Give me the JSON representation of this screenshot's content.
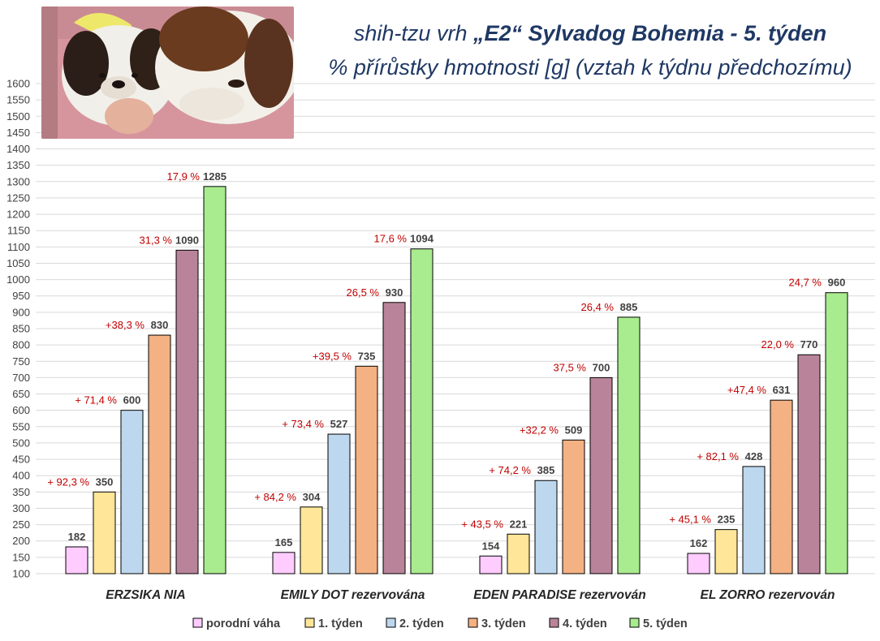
{
  "title": {
    "line1_plain": "shih-tzu vrh ",
    "line1_bold": "„E2“ Sylvadog Bohemia - 5. týden",
    "line2": "% přírůstky hmotnosti [g] (vztah k týdnu předchozímu)"
  },
  "photo": {
    "icon": "puppies-photo"
  },
  "chart_data": {
    "type": "bar",
    "title": "shih-tzu vrh „E2“ Sylvadog Bohemia - 5. týden",
    "subtitle": "% přírůstky hmotnosti [g] (vztah k týdnu předchozímu)",
    "xlabel": "",
    "ylabel": "",
    "ylim": [
      100,
      1600
    ],
    "ytick_step": 50,
    "grid": true,
    "legend_position": "bottom",
    "categories": [
      "ERZSIKA NIA",
      "EMILY DOT rezervována",
      "EDEN PARADISE rezervován",
      "EL ZORRO  rezervován"
    ],
    "series": [
      {
        "name": "porodní váha",
        "color": "#ffccff",
        "values": [
          182,
          165,
          154,
          162
        ],
        "pct_labels": [
          "",
          "",
          "",
          ""
        ]
      },
      {
        "name": "1. týden",
        "color": "#ffe699",
        "values": [
          350,
          304,
          221,
          235
        ],
        "pct_labels": [
          "+ 92,3 %",
          "+ 84,2 %",
          "+ 43,5 %",
          "+ 45,1 %"
        ]
      },
      {
        "name": "2. týden",
        "color": "#bdd7ee",
        "values": [
          600,
          527,
          385,
          428
        ],
        "pct_labels": [
          "+ 71,4 %",
          "+ 73,4 %",
          "+ 74,2 %",
          "+ 82,1 %"
        ]
      },
      {
        "name": "3. týden",
        "color": "#f4b183",
        "values": [
          830,
          735,
          509,
          631
        ],
        "pct_labels": [
          "+38,3 %",
          "+39,5 %",
          "+32,2 %",
          "+47,4 %"
        ]
      },
      {
        "name": "4. týden",
        "color": "#b9849a",
        "values": [
          1090,
          930,
          700,
          770
        ],
        "pct_labels": [
          "31,3 %",
          "26,5 %",
          "37,5 %",
          "22,0 %"
        ]
      },
      {
        "name": "5. týden",
        "color": "#a9eb8f",
        "values": [
          1285,
          1094,
          885,
          960
        ],
        "pct_labels": [
          "17,9 %",
          "17,6 %",
          "26,4 %",
          "24,7 %"
        ]
      }
    ]
  }
}
